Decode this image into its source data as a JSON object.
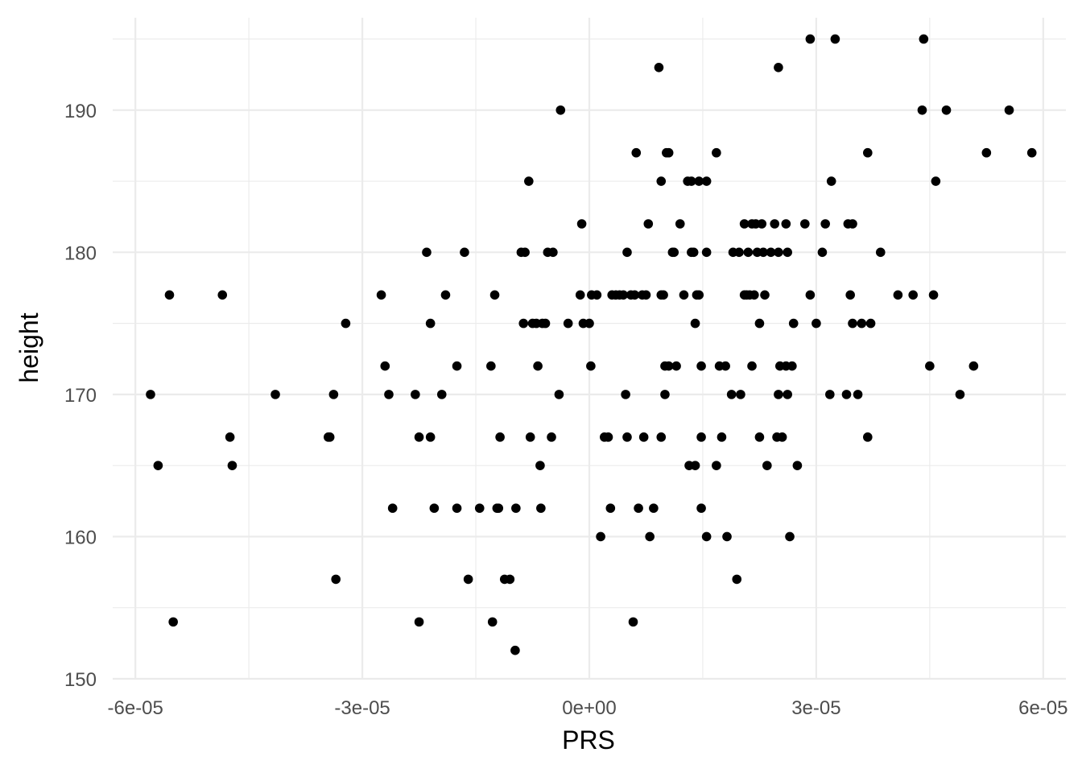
{
  "chart_data": {
    "type": "scatter",
    "xlabel": "PRS",
    "ylabel": "height",
    "xlim": [
      -6.3e-05,
      6.3e-05
    ],
    "ylim": [
      150,
      196.5
    ],
    "x_major_ticks": [
      -6e-05,
      -3e-05,
      0,
      3e-05,
      6e-05
    ],
    "x_tick_labels": [
      "-6e-05",
      "-3e-05",
      "0e+00",
      "3e-05",
      "6e-05"
    ],
    "x_minor_ticks": [
      -4.5e-05,
      -1.5e-05,
      1.5e-05,
      4.5e-05
    ],
    "y_major_ticks": [
      150,
      160,
      170,
      180,
      190
    ],
    "y_tick_labels": [
      "150",
      "160",
      "170",
      "180",
      "190"
    ],
    "y_minor_ticks": [
      155,
      165,
      175,
      185,
      195
    ],
    "grid": true,
    "legend": "none",
    "point_color": "#000000",
    "points": [
      [
        -5.8e-05,
        170
      ],
      [
        -5.7e-05,
        165
      ],
      [
        -5.55e-05,
        177
      ],
      [
        -5.5e-05,
        154
      ],
      [
        -4.85e-05,
        177
      ],
      [
        -4.75e-05,
        167
      ],
      [
        -4.72e-05,
        165
      ],
      [
        -4.15e-05,
        170
      ],
      [
        -3.45e-05,
        167
      ],
      [
        -3.43e-05,
        167
      ],
      [
        -3.38e-05,
        170
      ],
      [
        -3.35e-05,
        157
      ],
      [
        -3.22e-05,
        175
      ],
      [
        -2.75e-05,
        177
      ],
      [
        -2.7e-05,
        172
      ],
      [
        -2.65e-05,
        170
      ],
      [
        -2.6e-05,
        162
      ],
      [
        -2.3e-05,
        170
      ],
      [
        -2.25e-05,
        167
      ],
      [
        -2.25e-05,
        154
      ],
      [
        -2.15e-05,
        180
      ],
      [
        -2.1e-05,
        175
      ],
      [
        -2.1e-05,
        167
      ],
      [
        -2.05e-05,
        162
      ],
      [
        -1.95e-05,
        170
      ],
      [
        -1.9e-05,
        177
      ],
      [
        -1.75e-05,
        172
      ],
      [
        -1.75e-05,
        162
      ],
      [
        -1.65e-05,
        180
      ],
      [
        -1.6e-05,
        157
      ],
      [
        -1.45e-05,
        162
      ],
      [
        -1.3e-05,
        172
      ],
      [
        -1.28e-05,
        154
      ],
      [
        -1.25e-05,
        177
      ],
      [
        -1.22e-05,
        162
      ],
      [
        -1.2e-05,
        162
      ],
      [
        -1.18e-05,
        167
      ],
      [
        -1.12e-05,
        157
      ],
      [
        -1.05e-05,
        157
      ],
      [
        -9.8e-06,
        152
      ],
      [
        -9.7e-06,
        162
      ],
      [
        -9e-06,
        180
      ],
      [
        -8.7e-06,
        175
      ],
      [
        -8.5e-06,
        180
      ],
      [
        -8e-06,
        185
      ],
      [
        -7.8e-06,
        167
      ],
      [
        -7.5e-06,
        175
      ],
      [
        -7e-06,
        175
      ],
      [
        -6.8e-06,
        172
      ],
      [
        -6.5e-06,
        165
      ],
      [
        -6.4e-06,
        162
      ],
      [
        -6.2e-06,
        175
      ],
      [
        -5.8e-06,
        175
      ],
      [
        -5.5e-06,
        180
      ],
      [
        -5e-06,
        167
      ],
      [
        -4.8e-06,
        180
      ],
      [
        -4e-06,
        170
      ],
      [
        -3.8e-06,
        190
      ],
      [
        -2.8e-06,
        175
      ],
      [
        -1e-06,
        182
      ],
      [
        -1.2e-06,
        177
      ],
      [
        -8e-07,
        175
      ],
      [
        0,
        175
      ],
      [
        2e-07,
        172
      ],
      [
        3e-07,
        177
      ],
      [
        1e-06,
        177
      ],
      [
        1.5e-06,
        160
      ],
      [
        2e-06,
        167
      ],
      [
        2.5e-06,
        167
      ],
      [
        2.8e-06,
        162
      ],
      [
        3e-06,
        177
      ],
      [
        3.5e-06,
        177
      ],
      [
        4e-06,
        177
      ],
      [
        4.5e-06,
        177
      ],
      [
        4.8e-06,
        170
      ],
      [
        5e-06,
        180
      ],
      [
        5e-06,
        167
      ],
      [
        5.5e-06,
        177
      ],
      [
        5.8e-06,
        154
      ],
      [
        6e-06,
        177
      ],
      [
        6.2e-06,
        187
      ],
      [
        6.5e-06,
        162
      ],
      [
        7e-06,
        177
      ],
      [
        7.2e-06,
        167
      ],
      [
        7.5e-06,
        177
      ],
      [
        7.8e-06,
        182
      ],
      [
        8e-06,
        160
      ],
      [
        8.5e-06,
        162
      ],
      [
        9.2e-06,
        193
      ],
      [
        9.5e-06,
        185
      ],
      [
        9.5e-06,
        177
      ],
      [
        9.5e-06,
        167
      ],
      [
        9.8e-06,
        177
      ],
      [
        1e-05,
        172
      ],
      [
        1e-05,
        170
      ],
      [
        1.02e-05,
        187
      ],
      [
        1.05e-05,
        187
      ],
      [
        1.05e-05,
        172
      ],
      [
        1.1e-05,
        180
      ],
      [
        1.12e-05,
        180
      ],
      [
        1.15e-05,
        172
      ],
      [
        1.2e-05,
        182
      ],
      [
        1.25e-05,
        177
      ],
      [
        1.3e-05,
        185
      ],
      [
        1.32e-05,
        165
      ],
      [
        1.35e-05,
        185
      ],
      [
        1.35e-05,
        180
      ],
      [
        1.38e-05,
        180
      ],
      [
        1.4e-05,
        175
      ],
      [
        1.4e-05,
        165
      ],
      [
        1.42e-05,
        177
      ],
      [
        1.45e-05,
        185
      ],
      [
        1.45e-05,
        177
      ],
      [
        1.48e-05,
        172
      ],
      [
        1.48e-05,
        167
      ],
      [
        1.48e-05,
        162
      ],
      [
        1.55e-05,
        185
      ],
      [
        1.55e-05,
        180
      ],
      [
        1.55e-05,
        160
      ],
      [
        1.68e-05,
        187
      ],
      [
        1.68e-05,
        165
      ],
      [
        1.72e-05,
        172
      ],
      [
        1.75e-05,
        167
      ],
      [
        1.8e-05,
        172
      ],
      [
        1.82e-05,
        160
      ],
      [
        1.88e-05,
        170
      ],
      [
        1.9e-05,
        180
      ],
      [
        1.95e-05,
        157
      ],
      [
        1.98e-05,
        180
      ],
      [
        2e-05,
        170
      ],
      [
        2.05e-05,
        182
      ],
      [
        2.05e-05,
        177
      ],
      [
        2.08e-05,
        177
      ],
      [
        2.1e-05,
        180
      ],
      [
        2.12e-05,
        177
      ],
      [
        2.15e-05,
        182
      ],
      [
        2.15e-05,
        172
      ],
      [
        2.18e-05,
        177
      ],
      [
        2.2e-05,
        182
      ],
      [
        2.22e-05,
        180
      ],
      [
        2.25e-05,
        175
      ],
      [
        2.25e-05,
        167
      ],
      [
        2.28e-05,
        182
      ],
      [
        2.3e-05,
        180
      ],
      [
        2.32e-05,
        177
      ],
      [
        2.35e-05,
        165
      ],
      [
        2.4e-05,
        180
      ],
      [
        2.45e-05,
        182
      ],
      [
        2.48e-05,
        167
      ],
      [
        2.5e-05,
        193
      ],
      [
        2.5e-05,
        180
      ],
      [
        2.5e-05,
        170
      ],
      [
        2.52e-05,
        172
      ],
      [
        2.55e-05,
        167
      ],
      [
        2.6e-05,
        182
      ],
      [
        2.6e-05,
        172
      ],
      [
        2.62e-05,
        180
      ],
      [
        2.62e-05,
        170
      ],
      [
        2.65e-05,
        160
      ],
      [
        2.68e-05,
        172
      ],
      [
        2.7e-05,
        175
      ],
      [
        2.75e-05,
        165
      ],
      [
        2.85e-05,
        182
      ],
      [
        2.92e-05,
        177
      ],
      [
        2.92e-05,
        195
      ],
      [
        3e-05,
        175
      ],
      [
        3.08e-05,
        180
      ],
      [
        3.12e-05,
        182
      ],
      [
        3.18e-05,
        170
      ],
      [
        3.2e-05,
        185
      ],
      [
        3.25e-05,
        195
      ],
      [
        3.4e-05,
        170
      ],
      [
        3.42e-05,
        182
      ],
      [
        3.45e-05,
        177
      ],
      [
        3.48e-05,
        182
      ],
      [
        3.48e-05,
        175
      ],
      [
        3.55e-05,
        170
      ],
      [
        3.6e-05,
        175
      ],
      [
        3.68e-05,
        187
      ],
      [
        3.68e-05,
        167
      ],
      [
        3.72e-05,
        175
      ],
      [
        3.85e-05,
        180
      ],
      [
        4.08e-05,
        177
      ],
      [
        4.28e-05,
        177
      ],
      [
        4.4e-05,
        190
      ],
      [
        4.42e-05,
        195
      ],
      [
        4.5e-05,
        172
      ],
      [
        4.55e-05,
        177
      ],
      [
        4.58e-05,
        185
      ],
      [
        4.72e-05,
        190
      ],
      [
        4.9e-05,
        170
      ],
      [
        5.08e-05,
        172
      ],
      [
        5.25e-05,
        187
      ],
      [
        5.55e-05,
        190
      ],
      [
        5.85e-05,
        187
      ]
    ]
  }
}
